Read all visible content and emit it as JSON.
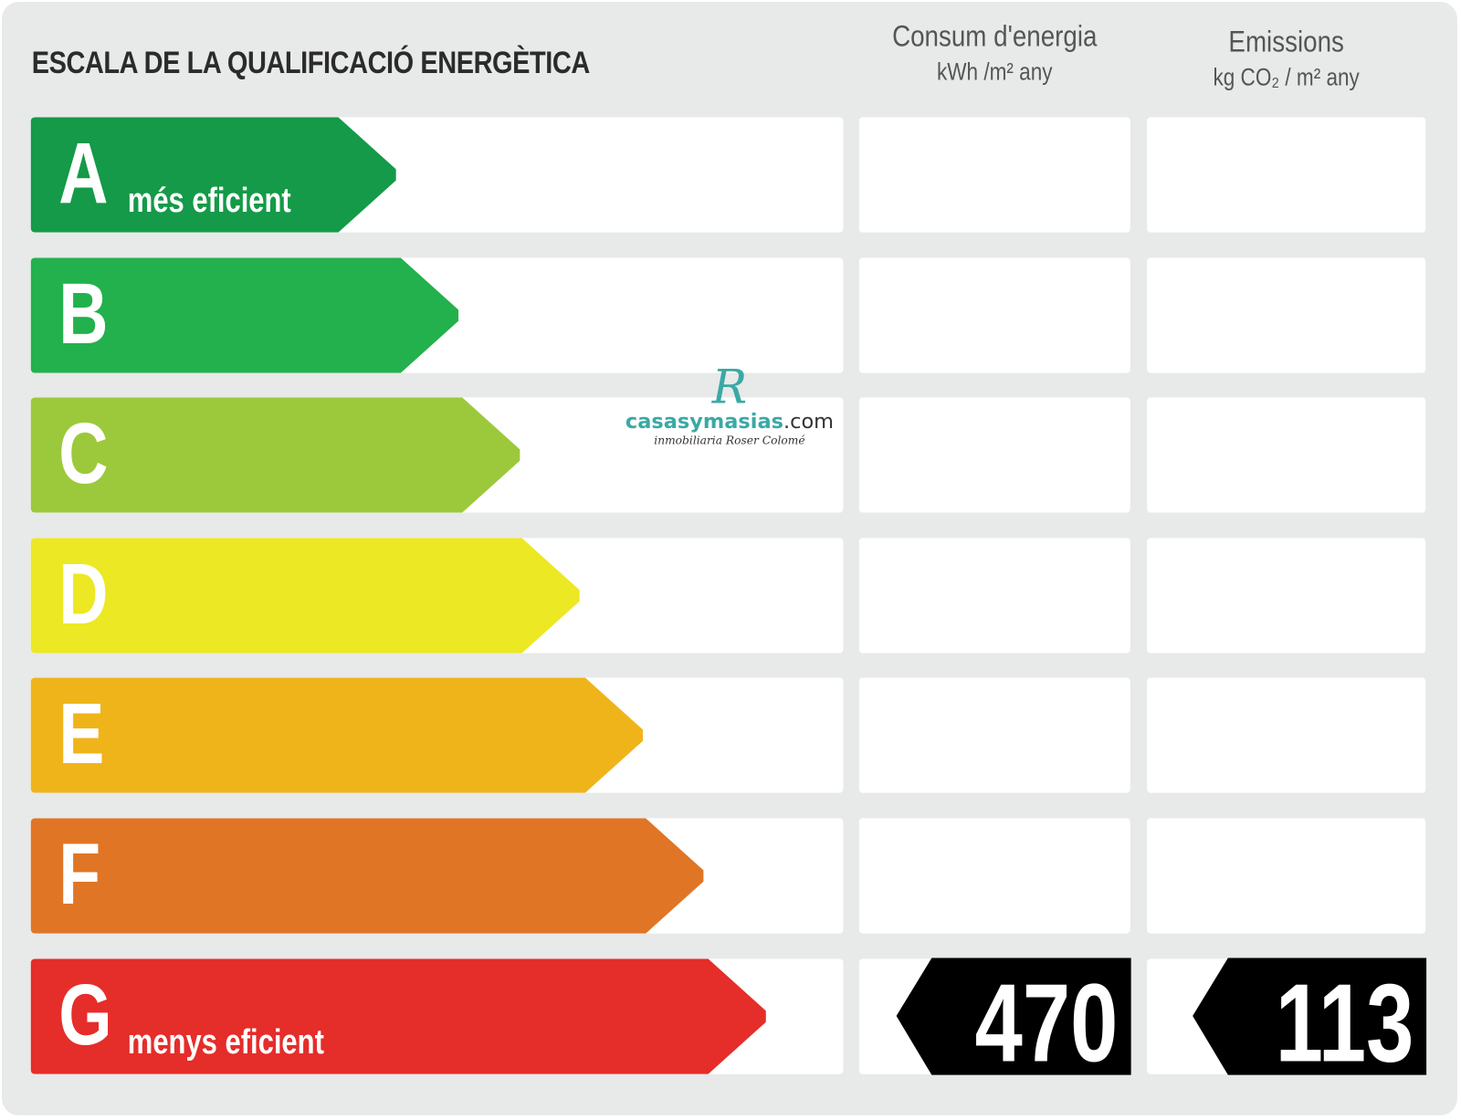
{
  "title": "ESCALA DE LA QUALIFICACIÓ ENERGÈTICA",
  "columns": [
    {
      "label": "Consum d'energia",
      "unit": "kWh /m² any"
    },
    {
      "label": "Emissions",
      "unit": "kg CO₂ / m² any"
    }
  ],
  "ratings": [
    {
      "letter": "A",
      "subtitle": "més eficient",
      "color": "#149a48"
    },
    {
      "letter": "B",
      "subtitle": "",
      "color": "#22b14c"
    },
    {
      "letter": "C",
      "subtitle": "",
      "color": "#9cc93b"
    },
    {
      "letter": "D",
      "subtitle": "",
      "color": "#ece823"
    },
    {
      "letter": "E",
      "subtitle": "",
      "color": "#f0b41b"
    },
    {
      "letter": "F",
      "subtitle": "",
      "color": "#e07525"
    },
    {
      "letter": "G",
      "subtitle": "menys eficient",
      "color": "#e52d2a"
    }
  ],
  "result": {
    "rating": "G",
    "energy_consumption": "470",
    "emissions": "113"
  },
  "watermark": {
    "brand": "casasymasias",
    "domain": ".com",
    "tagline": "inmobiliaria Roser Colomé",
    "monogram": "R",
    "color": "#3aa9a6"
  }
}
